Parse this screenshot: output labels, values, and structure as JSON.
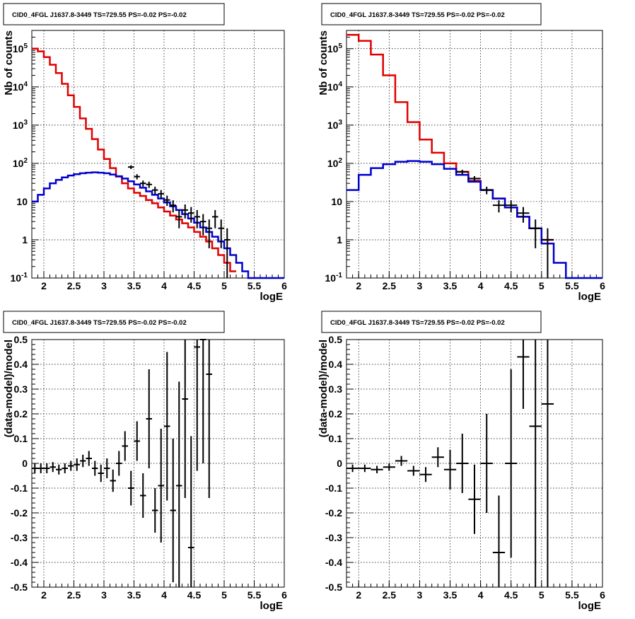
{
  "chart_data": [
    {
      "type": "line",
      "title": "CID0_4FGL J1637.8-3449 TS=729.55 PS=-0.02 PS=-0.02",
      "xlabel": "logE",
      "ylabel": "Nb of counts",
      "xlim": [
        1.8,
        6.0
      ],
      "ylim": [
        0.1,
        300000
      ],
      "yscale": "log",
      "grid": true,
      "x_ticks": [
        "2",
        "2.5",
        "3",
        "3.5",
        "4",
        "4.5",
        "5",
        "5.5",
        "6"
      ],
      "y_ticks": [
        "10^-1",
        "1",
        "10",
        "10^2",
        "10^3",
        "10^4",
        "10^5"
      ],
      "bin_width": 0.1,
      "series": [
        {
          "color": "#e00000",
          "x": [
            1.85,
            1.95,
            2.05,
            2.15,
            2.25,
            2.35,
            2.45,
            2.55,
            2.65,
            2.75,
            2.85,
            2.95,
            3.05,
            3.15,
            3.25,
            3.35,
            3.45,
            3.55,
            3.65,
            3.75,
            3.85,
            3.95,
            4.05,
            4.15,
            4.25,
            4.35,
            4.45,
            4.55,
            4.65,
            4.75,
            4.85,
            4.95,
            5.05,
            5.15
          ],
          "y": [
            100000,
            85000,
            60000,
            38000,
            23000,
            12000,
            6000,
            3000,
            1500,
            800,
            430,
            230,
            130,
            75,
            45,
            30,
            22,
            17,
            14,
            11,
            9,
            7,
            5.5,
            4.3,
            3.4,
            2.7,
            2.1,
            1.6,
            1.2,
            0.9,
            0.6,
            0.4,
            0.25,
            0.15
          ]
        },
        {
          "color": "#0000cc",
          "x": [
            1.85,
            1.95,
            2.05,
            2.15,
            2.25,
            2.35,
            2.45,
            2.55,
            2.65,
            2.75,
            2.85,
            2.95,
            3.05,
            3.15,
            3.25,
            3.35,
            3.45,
            3.55,
            3.65,
            3.75,
            3.85,
            3.95,
            4.05,
            4.15,
            4.25,
            4.35,
            4.45,
            4.55,
            4.65,
            4.75,
            4.85,
            4.95,
            5.05,
            5.15,
            5.25,
            5.35,
            5.45,
            5.55,
            5.65,
            5.75,
            5.85,
            5.95
          ],
          "y": [
            10,
            15,
            22,
            30,
            37,
            43,
            48,
            52,
            55,
            57,
            58,
            57,
            55,
            51,
            46,
            40,
            34,
            28,
            23,
            18.5,
            15,
            12,
            9.5,
            7.5,
            6,
            4.7,
            3.6,
            2.8,
            2.1,
            1.6,
            1.2,
            0.9,
            0.6,
            0.4,
            0.25,
            0.15,
            0.1,
            0.1,
            0.1,
            0.1,
            0.1,
            0.1
          ]
        },
        {
          "color": "#000000",
          "style": "points",
          "x": [
            3.45,
            3.55,
            3.65,
            3.75,
            3.85,
            3.95,
            4.05,
            4.15,
            4.25,
            4.35,
            4.45,
            4.55,
            4.65,
            4.75,
            4.85,
            4.95,
            5.05
          ],
          "y": [
            80,
            45,
            30,
            28,
            20,
            16,
            11,
            8,
            4,
            6,
            5,
            4,
            3,
            2,
            4,
            2,
            1
          ],
          "err": [
            9,
            7,
            5.5,
            5.3,
            4.5,
            4,
            3.3,
            2.8,
            2,
            2.4,
            2.2,
            2,
            1.7,
            1.4,
            2,
            1.4,
            1
          ]
        }
      ]
    },
    {
      "type": "line",
      "title": "CID0_4FGL J1637.8-3449 TS=729.55 PS=-0.02 PS=-0.02",
      "xlabel": "logE",
      "ylabel": "Nb of counts",
      "xlim": [
        1.8,
        6.0
      ],
      "ylim": [
        0.1,
        300000
      ],
      "yscale": "log",
      "grid": true,
      "x_ticks": [
        "2",
        "2.5",
        "3",
        "3.5",
        "4",
        "4.5",
        "5",
        "5.5",
        "6"
      ],
      "y_ticks": [
        "10^-1",
        "1",
        "10",
        "10^2",
        "10^3",
        "10^4",
        "10^5"
      ],
      "bin_width": 0.2,
      "series": [
        {
          "color": "#e00000",
          "x": [
            1.9,
            2.1,
            2.3,
            2.5,
            2.7,
            2.9,
            3.1,
            3.3,
            3.5,
            3.7,
            3.9,
            4.1,
            4.3,
            4.5,
            4.7,
            4.9,
            5.1
          ],
          "y": [
            230000,
            160000,
            70000,
            20000,
            4000,
            1200,
            420,
            190,
            100,
            60,
            35,
            20,
            12,
            7,
            4,
            2,
            1
          ]
        },
        {
          "color": "#0000cc",
          "x": [
            1.9,
            2.1,
            2.3,
            2.5,
            2.7,
            2.9,
            3.1,
            3.3,
            3.5,
            3.7,
            3.9,
            4.1,
            4.3,
            4.5,
            4.7,
            4.9,
            5.1,
            5.3,
            5.5,
            5.7,
            5.9
          ],
          "y": [
            20,
            50,
            75,
            95,
            110,
            115,
            110,
            95,
            72,
            50,
            33,
            20,
            12,
            7,
            4,
            2,
            0.8,
            0.25,
            0.1,
            0.1,
            0.1
          ]
        },
        {
          "color": "#000000",
          "style": "points",
          "x": [
            3.7,
            3.9,
            4.1,
            4.3,
            4.5,
            4.7,
            4.9,
            5.1
          ],
          "y": [
            60,
            40,
            20,
            8,
            8,
            5,
            2,
            1
          ],
          "err": [
            8,
            6.3,
            4.5,
            2.8,
            2.8,
            2.2,
            1.4,
            1
          ]
        }
      ]
    },
    {
      "type": "scatter",
      "title": "CID0_4FGL J1637.8-3449 TS=729.55 PS=-0.02 PS=-0.02",
      "xlabel": "logE",
      "ylabel": "(data-model)/model",
      "xlim": [
        1.8,
        6.0
      ],
      "ylim": [
        -0.5,
        0.5
      ],
      "grid": true,
      "x_ticks": [
        "2",
        "2.5",
        "3",
        "3.5",
        "4",
        "4.5",
        "5",
        "5.5",
        "6"
      ],
      "y_ticks": [
        "-0.5",
        "-0.4",
        "-0.3",
        "-0.2",
        "-0.1",
        "0",
        "0.1",
        "0.2",
        "0.3",
        "0.4",
        "0.5"
      ],
      "bin_width": 0.1,
      "points": {
        "x": [
          1.85,
          1.95,
          2.05,
          2.15,
          2.25,
          2.35,
          2.45,
          2.55,
          2.65,
          2.75,
          2.85,
          2.95,
          3.05,
          3.15,
          3.25,
          3.35,
          3.45,
          3.55,
          3.65,
          3.75,
          3.85,
          3.95,
          4.05,
          4.15,
          4.25,
          4.35,
          4.45,
          4.55,
          4.65,
          4.75
        ],
        "y": [
          -0.02,
          -0.02,
          -0.02,
          -0.015,
          -0.025,
          -0.02,
          -0.01,
          -0.005,
          0.01,
          0.02,
          -0.02,
          -0.04,
          -0.02,
          -0.07,
          0,
          0.07,
          -0.1,
          0.09,
          -0.13,
          0.18,
          -0.19,
          -0.09,
          0.15,
          -0.19,
          -0.09,
          0.26,
          -0.34,
          0.47,
          0.5,
          0.36
        ],
        "err": [
          0.02,
          0.02,
          0.02,
          0.02,
          0.02,
          0.02,
          0.02,
          0.025,
          0.025,
          0.03,
          0.03,
          0.035,
          0.04,
          0.045,
          0.05,
          0.06,
          0.07,
          0.08,
          0.09,
          0.2,
          0.09,
          0.23,
          0.3,
          0.29,
          0.42,
          0.4,
          0.45,
          0.5,
          0.5,
          0.5
        ]
      }
    },
    {
      "type": "scatter",
      "title": "CID0_4FGL J1637.8-3449 TS=729.55 PS=-0.02 PS=-0.02",
      "xlabel": "logE",
      "ylabel": "(data-model)/model",
      "xlim": [
        1.8,
        6.0
      ],
      "ylim": [
        -0.5,
        0.5
      ],
      "grid": true,
      "x_ticks": [
        "2",
        "2.5",
        "3",
        "3.5",
        "4",
        "4.5",
        "5",
        "5.5",
        "6"
      ],
      "y_ticks": [
        "-0.5",
        "-0.4",
        "-0.3",
        "-0.2",
        "-0.1",
        "0",
        "0.1",
        "0.2",
        "0.3",
        "0.4",
        "0.5"
      ],
      "bin_width": 0.2,
      "points": {
        "x": [
          1.9,
          2.1,
          2.3,
          2.5,
          2.7,
          2.9,
          3.1,
          3.3,
          3.5,
          3.7,
          3.9,
          4.1,
          4.3,
          4.5,
          4.7,
          4.9,
          5.1
        ],
        "y": [
          -0.02,
          -0.02,
          -0.025,
          -0.015,
          0.01,
          -0.03,
          -0.045,
          0.025,
          -0.025,
          0,
          -0.145,
          0,
          -0.36,
          0,
          0.43,
          0.15,
          0.24
        ],
        "err": [
          0.015,
          0.015,
          0.015,
          0.015,
          0.02,
          0.02,
          0.03,
          0.04,
          0.08,
          0.12,
          0.14,
          0.2,
          0.23,
          0.38,
          0.21,
          0.68,
          0.8
        ]
      }
    }
  ]
}
